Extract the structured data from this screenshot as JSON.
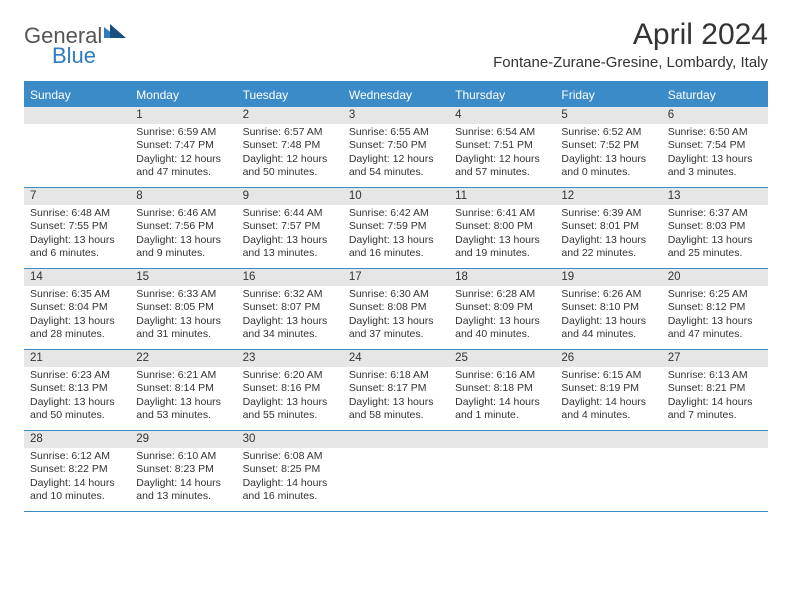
{
  "logo": {
    "general": "General",
    "blue": "Blue"
  },
  "title": "April 2024",
  "location": "Fontane-Zurane-Gresine, Lombardy, Italy",
  "colors": {
    "header_blue": "#3b8bc9",
    "gray_bar": "#e6e6e6",
    "text": "#333333",
    "logo_gray": "#555555",
    "logo_blue": "#2f7bbf"
  },
  "days_of_week": [
    "Sunday",
    "Monday",
    "Tuesday",
    "Wednesday",
    "Thursday",
    "Friday",
    "Saturday"
  ],
  "weeks": [
    [
      {
        "n": "",
        "sr": "",
        "ss": "",
        "dl": ""
      },
      {
        "n": "1",
        "sr": "Sunrise: 6:59 AM",
        "ss": "Sunset: 7:47 PM",
        "dl": "Daylight: 12 hours and 47 minutes."
      },
      {
        "n": "2",
        "sr": "Sunrise: 6:57 AM",
        "ss": "Sunset: 7:48 PM",
        "dl": "Daylight: 12 hours and 50 minutes."
      },
      {
        "n": "3",
        "sr": "Sunrise: 6:55 AM",
        "ss": "Sunset: 7:50 PM",
        "dl": "Daylight: 12 hours and 54 minutes."
      },
      {
        "n": "4",
        "sr": "Sunrise: 6:54 AM",
        "ss": "Sunset: 7:51 PM",
        "dl": "Daylight: 12 hours and 57 minutes."
      },
      {
        "n": "5",
        "sr": "Sunrise: 6:52 AM",
        "ss": "Sunset: 7:52 PM",
        "dl": "Daylight: 13 hours and 0 minutes."
      },
      {
        "n": "6",
        "sr": "Sunrise: 6:50 AM",
        "ss": "Sunset: 7:54 PM",
        "dl": "Daylight: 13 hours and 3 minutes."
      }
    ],
    [
      {
        "n": "7",
        "sr": "Sunrise: 6:48 AM",
        "ss": "Sunset: 7:55 PM",
        "dl": "Daylight: 13 hours and 6 minutes."
      },
      {
        "n": "8",
        "sr": "Sunrise: 6:46 AM",
        "ss": "Sunset: 7:56 PM",
        "dl": "Daylight: 13 hours and 9 minutes."
      },
      {
        "n": "9",
        "sr": "Sunrise: 6:44 AM",
        "ss": "Sunset: 7:57 PM",
        "dl": "Daylight: 13 hours and 13 minutes."
      },
      {
        "n": "10",
        "sr": "Sunrise: 6:42 AM",
        "ss": "Sunset: 7:59 PM",
        "dl": "Daylight: 13 hours and 16 minutes."
      },
      {
        "n": "11",
        "sr": "Sunrise: 6:41 AM",
        "ss": "Sunset: 8:00 PM",
        "dl": "Daylight: 13 hours and 19 minutes."
      },
      {
        "n": "12",
        "sr": "Sunrise: 6:39 AM",
        "ss": "Sunset: 8:01 PM",
        "dl": "Daylight: 13 hours and 22 minutes."
      },
      {
        "n": "13",
        "sr": "Sunrise: 6:37 AM",
        "ss": "Sunset: 8:03 PM",
        "dl": "Daylight: 13 hours and 25 minutes."
      }
    ],
    [
      {
        "n": "14",
        "sr": "Sunrise: 6:35 AM",
        "ss": "Sunset: 8:04 PM",
        "dl": "Daylight: 13 hours and 28 minutes."
      },
      {
        "n": "15",
        "sr": "Sunrise: 6:33 AM",
        "ss": "Sunset: 8:05 PM",
        "dl": "Daylight: 13 hours and 31 minutes."
      },
      {
        "n": "16",
        "sr": "Sunrise: 6:32 AM",
        "ss": "Sunset: 8:07 PM",
        "dl": "Daylight: 13 hours and 34 minutes."
      },
      {
        "n": "17",
        "sr": "Sunrise: 6:30 AM",
        "ss": "Sunset: 8:08 PM",
        "dl": "Daylight: 13 hours and 37 minutes."
      },
      {
        "n": "18",
        "sr": "Sunrise: 6:28 AM",
        "ss": "Sunset: 8:09 PM",
        "dl": "Daylight: 13 hours and 40 minutes."
      },
      {
        "n": "19",
        "sr": "Sunrise: 6:26 AM",
        "ss": "Sunset: 8:10 PM",
        "dl": "Daylight: 13 hours and 44 minutes."
      },
      {
        "n": "20",
        "sr": "Sunrise: 6:25 AM",
        "ss": "Sunset: 8:12 PM",
        "dl": "Daylight: 13 hours and 47 minutes."
      }
    ],
    [
      {
        "n": "21",
        "sr": "Sunrise: 6:23 AM",
        "ss": "Sunset: 8:13 PM",
        "dl": "Daylight: 13 hours and 50 minutes."
      },
      {
        "n": "22",
        "sr": "Sunrise: 6:21 AM",
        "ss": "Sunset: 8:14 PM",
        "dl": "Daylight: 13 hours and 53 minutes."
      },
      {
        "n": "23",
        "sr": "Sunrise: 6:20 AM",
        "ss": "Sunset: 8:16 PM",
        "dl": "Daylight: 13 hours and 55 minutes."
      },
      {
        "n": "24",
        "sr": "Sunrise: 6:18 AM",
        "ss": "Sunset: 8:17 PM",
        "dl": "Daylight: 13 hours and 58 minutes."
      },
      {
        "n": "25",
        "sr": "Sunrise: 6:16 AM",
        "ss": "Sunset: 8:18 PM",
        "dl": "Daylight: 14 hours and 1 minute."
      },
      {
        "n": "26",
        "sr": "Sunrise: 6:15 AM",
        "ss": "Sunset: 8:19 PM",
        "dl": "Daylight: 14 hours and 4 minutes."
      },
      {
        "n": "27",
        "sr": "Sunrise: 6:13 AM",
        "ss": "Sunset: 8:21 PM",
        "dl": "Daylight: 14 hours and 7 minutes."
      }
    ],
    [
      {
        "n": "28",
        "sr": "Sunrise: 6:12 AM",
        "ss": "Sunset: 8:22 PM",
        "dl": "Daylight: 14 hours and 10 minutes."
      },
      {
        "n": "29",
        "sr": "Sunrise: 6:10 AM",
        "ss": "Sunset: 8:23 PM",
        "dl": "Daylight: 14 hours and 13 minutes."
      },
      {
        "n": "30",
        "sr": "Sunrise: 6:08 AM",
        "ss": "Sunset: 8:25 PM",
        "dl": "Daylight: 14 hours and 16 minutes."
      },
      {
        "n": "",
        "sr": "",
        "ss": "",
        "dl": ""
      },
      {
        "n": "",
        "sr": "",
        "ss": "",
        "dl": ""
      },
      {
        "n": "",
        "sr": "",
        "ss": "",
        "dl": ""
      },
      {
        "n": "",
        "sr": "",
        "ss": "",
        "dl": ""
      }
    ]
  ]
}
